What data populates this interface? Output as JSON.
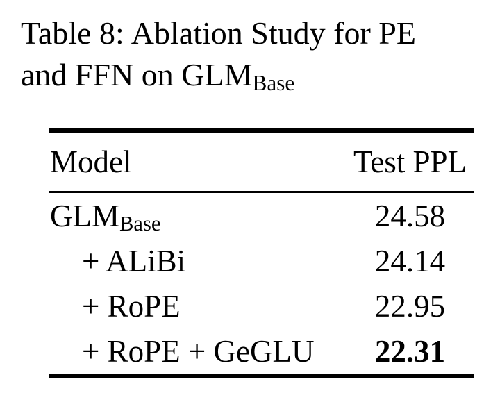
{
  "caption": {
    "label": "Table 8:",
    "line1_rest": "Ablation Study for PE",
    "line2_main": "and FFN on GLM",
    "line2_subscript": "Base"
  },
  "table": {
    "headers": {
      "model": "Model",
      "test_ppl": "Test PPL"
    },
    "rows": [
      {
        "model_main": "GLM",
        "model_subscript": "Base",
        "value": "24.58",
        "indent": false,
        "bold": false
      },
      {
        "model": "+ ALiBi",
        "value": "24.14",
        "indent": true,
        "bold": false
      },
      {
        "model": "+ RoPE",
        "value": "22.95",
        "indent": true,
        "bold": false
      },
      {
        "model": "+ RoPE + GeGLU",
        "value": "22.31",
        "indent": true,
        "bold": true
      }
    ]
  },
  "colors": {
    "text": "#000000",
    "background": "#ffffff",
    "rule": "#000000"
  }
}
